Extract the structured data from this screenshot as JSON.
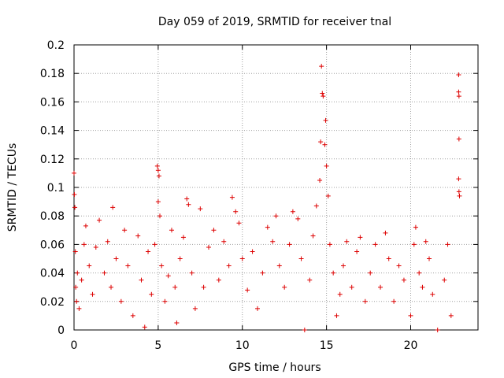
{
  "chart_data": {
    "type": "scatter",
    "title": "Day 059 of 2019, SRMTID for receiver tnal",
    "xlabel": "GPS time / hours",
    "ylabel": "SRMTID / TECUs",
    "xlim": [
      0,
      24
    ],
    "ylim": [
      0,
      0.2
    ],
    "x_ticks": [
      "0",
      "5",
      "10",
      "15",
      "20"
    ],
    "y_ticks": [
      "0",
      "0.02",
      "0.04",
      "0.06",
      "0.08",
      "0.1",
      "0.12",
      "0.14",
      "0.16",
      "0.18",
      "0.2"
    ],
    "grid": true,
    "marker": "+",
    "series": [
      {
        "color": "#dd0000",
        "points": [
          [
            0.0,
            0.11
          ],
          [
            0.02,
            0.095
          ],
          [
            0.05,
            0.086
          ],
          [
            0.08,
            0.055
          ],
          [
            0.1,
            0.03
          ],
          [
            0.15,
            0.02
          ],
          [
            0.2,
            0.04
          ],
          [
            0.3,
            0.015
          ],
          [
            0.45,
            0.035
          ],
          [
            0.6,
            0.06
          ],
          [
            0.7,
            0.073
          ],
          [
            0.9,
            0.045
          ],
          [
            1.1,
            0.025
          ],
          [
            1.3,
            0.058
          ],
          [
            1.5,
            0.077
          ],
          [
            1.8,
            0.04
          ],
          [
            2.0,
            0.062
          ],
          [
            2.2,
            0.03
          ],
          [
            2.3,
            0.086
          ],
          [
            2.5,
            0.05
          ],
          [
            2.8,
            0.02
          ],
          [
            3.0,
            0.07
          ],
          [
            3.2,
            0.045
          ],
          [
            3.5,
            0.01
          ],
          [
            3.8,
            0.066
          ],
          [
            4.0,
            0.035
          ],
          [
            4.2,
            0.002
          ],
          [
            4.4,
            0.055
          ],
          [
            4.6,
            0.025
          ],
          [
            4.8,
            0.06
          ],
          [
            4.95,
            0.115
          ],
          [
            5.0,
            0.112
          ],
          [
            5.05,
            0.108
          ],
          [
            5.0,
            0.09
          ],
          [
            5.1,
            0.08
          ],
          [
            5.2,
            0.045
          ],
          [
            5.4,
            0.02
          ],
          [
            5.6,
            0.038
          ],
          [
            5.8,
            0.07
          ],
          [
            6.0,
            0.03
          ],
          [
            6.1,
            0.005
          ],
          [
            6.3,
            0.05
          ],
          [
            6.5,
            0.065
          ],
          [
            6.7,
            0.092
          ],
          [
            6.8,
            0.088
          ],
          [
            7.0,
            0.04
          ],
          [
            7.2,
            0.015
          ],
          [
            7.5,
            0.085
          ],
          [
            7.7,
            0.03
          ],
          [
            8.0,
            0.058
          ],
          [
            8.3,
            0.07
          ],
          [
            8.6,
            0.035
          ],
          [
            8.9,
            0.062
          ],
          [
            9.2,
            0.045
          ],
          [
            9.4,
            0.093
          ],
          [
            9.6,
            0.083
          ],
          [
            9.8,
            0.075
          ],
          [
            10.0,
            0.05
          ],
          [
            10.3,
            0.028
          ],
          [
            10.6,
            0.055
          ],
          [
            10.9,
            0.015
          ],
          [
            11.2,
            0.04
          ],
          [
            11.5,
            0.072
          ],
          [
            11.8,
            0.062
          ],
          [
            12.0,
            0.08
          ],
          [
            12.2,
            0.045
          ],
          [
            12.5,
            0.03
          ],
          [
            12.8,
            0.06
          ],
          [
            13.0,
            0.083
          ],
          [
            13.3,
            0.078
          ],
          [
            13.5,
            0.05
          ],
          [
            13.7,
            0.0
          ],
          [
            14.0,
            0.035
          ],
          [
            14.2,
            0.066
          ],
          [
            14.4,
            0.087
          ],
          [
            14.6,
            0.105
          ],
          [
            14.65,
            0.132
          ],
          [
            14.7,
            0.185
          ],
          [
            14.75,
            0.166
          ],
          [
            14.8,
            0.164
          ],
          [
            14.9,
            0.13
          ],
          [
            14.95,
            0.147
          ],
          [
            15.0,
            0.115
          ],
          [
            15.1,
            0.094
          ],
          [
            15.2,
            0.06
          ],
          [
            15.4,
            0.04
          ],
          [
            15.6,
            0.01
          ],
          [
            15.8,
            0.025
          ],
          [
            16.0,
            0.045
          ],
          [
            16.2,
            0.062
          ],
          [
            16.5,
            0.03
          ],
          [
            16.8,
            0.055
          ],
          [
            17.0,
            0.065
          ],
          [
            17.3,
            0.02
          ],
          [
            17.6,
            0.04
          ],
          [
            17.9,
            0.06
          ],
          [
            18.2,
            0.03
          ],
          [
            18.5,
            0.068
          ],
          [
            18.7,
            0.05
          ],
          [
            19.0,
            0.02
          ],
          [
            19.3,
            0.045
          ],
          [
            19.6,
            0.035
          ],
          [
            20.0,
            0.01
          ],
          [
            20.2,
            0.06
          ],
          [
            20.3,
            0.072
          ],
          [
            20.5,
            0.04
          ],
          [
            20.7,
            0.03
          ],
          [
            20.9,
            0.062
          ],
          [
            21.1,
            0.05
          ],
          [
            21.3,
            0.025
          ],
          [
            21.6,
            0.0
          ],
          [
            22.0,
            0.035
          ],
          [
            22.2,
            0.06
          ],
          [
            22.4,
            0.01
          ],
          [
            22.85,
            0.179
          ],
          [
            22.85,
            0.167
          ],
          [
            22.87,
            0.164
          ],
          [
            22.87,
            0.134
          ],
          [
            22.85,
            0.106
          ],
          [
            22.87,
            0.097
          ],
          [
            22.9,
            0.094
          ]
        ]
      }
    ]
  }
}
